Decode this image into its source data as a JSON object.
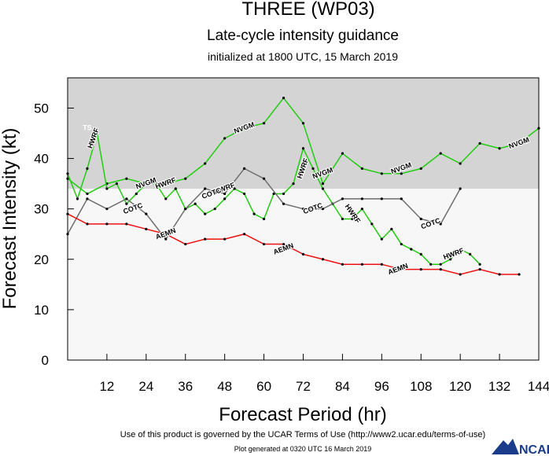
{
  "chart_data": {
    "type": "line",
    "title": "THREE (WP03)",
    "subtitle": "Late-cycle intensity guidance",
    "init_line": "initialized at 1800 UTC, 15 March 2019",
    "xlabel": "Forecast Period (hr)",
    "ylabel": "Forecast Intensity (kt)",
    "xlim": [
      0,
      144
    ],
    "ylim": [
      0,
      56
    ],
    "x_ticks": [
      12,
      24,
      36,
      48,
      60,
      72,
      84,
      96,
      108,
      120,
      132,
      144
    ],
    "y_ticks": [
      0,
      10,
      20,
      30,
      40,
      50
    ],
    "shade_threshold": 34,
    "grid": false,
    "series": [
      {
        "name": "NVGM",
        "color": "#22cc11",
        "x": [
          0,
          6,
          12,
          18,
          24,
          30,
          36,
          42,
          48,
          54,
          60,
          66,
          72,
          78,
          84,
          90,
          96,
          102,
          108,
          114,
          120,
          126,
          132,
          138,
          144
        ],
        "values": [
          36,
          33,
          35,
          36,
          35,
          35,
          36,
          39,
          44,
          46,
          47,
          52,
          47,
          35,
          41,
          38,
          37,
          37,
          38,
          41,
          39,
          43,
          42,
          43,
          46
        ],
        "labels": [
          {
            "x": 24,
            "y": 35,
            "text": "NVGM"
          },
          {
            "x": 54,
            "y": 46,
            "text": "NVGM"
          },
          {
            "x": 78,
            "y": 37,
            "text": "NVGM"
          },
          {
            "x": 102,
            "y": 38,
            "text": "NVGM"
          },
          {
            "x": 138,
            "y": 43,
            "text": "NVGM"
          }
        ]
      },
      {
        "name": "HWRF",
        "color": "#22cc11",
        "x": [
          0,
          3,
          6,
          9,
          12,
          15,
          18,
          21,
          24,
          27,
          30,
          33,
          36,
          39,
          42,
          45,
          48,
          51,
          54,
          57,
          60,
          63,
          66,
          69,
          72,
          75,
          78,
          81,
          84,
          87,
          90,
          93,
          96,
          99,
          102,
          105,
          108,
          111,
          114,
          117,
          120,
          123,
          126
        ],
        "values": [
          37,
          32,
          38,
          45,
          34,
          35,
          31,
          33,
          35,
          35,
          32,
          34,
          30,
          31,
          29,
          30,
          32,
          34,
          33,
          29,
          28,
          33,
          33,
          35,
          42,
          38,
          34,
          31,
          28,
          28,
          30,
          27,
          24,
          26,
          23,
          22,
          21,
          19,
          19,
          20,
          22,
          21,
          19
        ],
        "labels": [
          {
            "x": 8,
            "y": 44,
            "text": "HWRF"
          },
          {
            "x": 30,
            "y": 35,
            "text": "HWRF"
          },
          {
            "x": 48,
            "y": 34,
            "text": "HWRF"
          },
          {
            "x": 72,
            "y": 38,
            "text": "HWRF"
          },
          {
            "x": 87,
            "y": 29,
            "text": "HWRF"
          },
          {
            "x": 118,
            "y": 21,
            "text": "HWRF"
          }
        ]
      },
      {
        "name": "COTC",
        "color": "#6e6e6e",
        "x": [
          0,
          6,
          12,
          18,
          24,
          30,
          36,
          42,
          48,
          54,
          60,
          66,
          72,
          78,
          84,
          90,
          96,
          102,
          108,
          114,
          120
        ],
        "values": [
          25,
          32,
          30,
          32,
          29,
          24,
          30,
          34,
          33,
          38,
          36,
          31,
          30,
          30,
          32,
          32,
          32,
          32,
          28,
          27,
          34
        ],
        "labels": [
          {
            "x": 20,
            "y": 30,
            "text": "COTC"
          },
          {
            "x": 44,
            "y": 33,
            "text": "COTC"
          },
          {
            "x": 75,
            "y": 30,
            "text": "COTC"
          },
          {
            "x": 111,
            "y": 27,
            "text": "COTC"
          }
        ]
      },
      {
        "name": "AEMN",
        "color": "#ee1111",
        "x": [
          0,
          6,
          12,
          18,
          24,
          30,
          36,
          42,
          48,
          54,
          60,
          66,
          72,
          78,
          84,
          90,
          96,
          102,
          108,
          114,
          120,
          126,
          132,
          138
        ],
        "values": [
          29,
          27,
          27,
          27,
          26,
          25,
          23,
          24,
          24,
          25,
          23,
          23,
          21,
          20,
          19,
          19,
          19,
          18,
          18,
          18,
          17,
          18,
          17,
          17
        ],
        "labels": [
          {
            "x": 30,
            "y": 25,
            "text": "AEMN"
          },
          {
            "x": 66,
            "y": 22,
            "text": "AEMN"
          },
          {
            "x": 101,
            "y": 18,
            "text": "AEMN"
          }
        ]
      }
    ],
    "annotations": [
      {
        "x": 6,
        "y": 45,
        "text": "TS"
      }
    ]
  },
  "footer": {
    "terms": "Use of this product is governed by the UCAR Terms of Use (http://www2.ucar.edu/terms-of-use)",
    "generated": "Plot generated at 0320 UTC   16 March 2019",
    "logo": "NCAR"
  }
}
